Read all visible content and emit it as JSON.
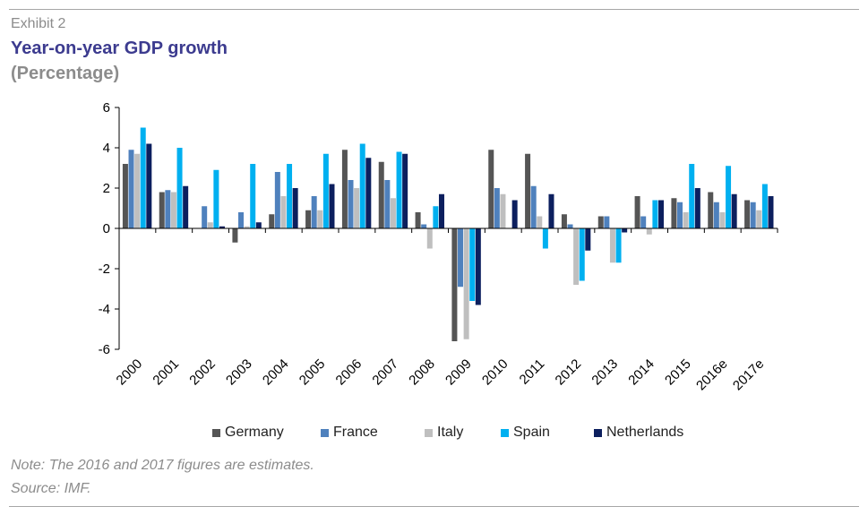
{
  "header": {
    "exhibit": "Exhibit 2",
    "title": "Year-on-year GDP growth",
    "subtitle": "(Percentage)"
  },
  "footer": {
    "note": "Note: The 2016 and 2017 figures are estimates.",
    "source": "Source: IMF."
  },
  "chart_data": {
    "type": "bar",
    "title": "Year-on-year GDP growth",
    "subtitle": "(Percentage)",
    "xlabel": "",
    "ylabel": "",
    "ylim": [
      -6,
      6
    ],
    "yticks": [
      -6,
      -4,
      -2,
      0,
      2,
      4,
      6
    ],
    "grid": false,
    "legend_position": "bottom",
    "categories": [
      "2000",
      "2001",
      "2002",
      "2003",
      "2004",
      "2005",
      "2006",
      "2007",
      "2008",
      "2009",
      "2010",
      "2011",
      "2012",
      "2013",
      "2014",
      "2015",
      "2016e",
      "2017e"
    ],
    "series": [
      {
        "name": "Germany",
        "color": "#555555",
        "values": [
          3.2,
          1.8,
          0.0,
          -0.7,
          0.7,
          0.9,
          3.9,
          3.3,
          0.8,
          -5.6,
          3.9,
          3.7,
          0.7,
          0.6,
          1.6,
          1.5,
          1.8,
          1.4
        ]
      },
      {
        "name": "France",
        "color": "#4f81bd",
        "values": [
          3.9,
          1.9,
          1.1,
          0.8,
          2.8,
          1.6,
          2.4,
          2.4,
          0.2,
          -2.9,
          2.0,
          2.1,
          0.2,
          0.6,
          0.6,
          1.3,
          1.3,
          1.3
        ]
      },
      {
        "name": "Italy",
        "color": "#bfbfbf",
        "values": [
          3.7,
          1.8,
          0.3,
          0.1,
          1.6,
          0.9,
          2.0,
          1.5,
          -1.0,
          -5.5,
          1.7,
          0.6,
          -2.8,
          -1.7,
          -0.3,
          0.8,
          0.8,
          0.9
        ]
      },
      {
        "name": "Spain",
        "color": "#00b0f0",
        "values": [
          5.0,
          4.0,
          2.9,
          3.2,
          3.2,
          3.7,
          4.2,
          3.8,
          1.1,
          -3.6,
          0.0,
          -1.0,
          -2.6,
          -1.7,
          1.4,
          3.2,
          3.1,
          2.2
        ]
      },
      {
        "name": "Netherlands",
        "color": "#0c1f5e",
        "values": [
          4.2,
          2.1,
          0.1,
          0.3,
          2.0,
          2.2,
          3.5,
          3.7,
          1.7,
          -3.8,
          1.4,
          1.7,
          -1.1,
          -0.2,
          1.4,
          2.0,
          1.7,
          1.6
        ]
      }
    ]
  }
}
